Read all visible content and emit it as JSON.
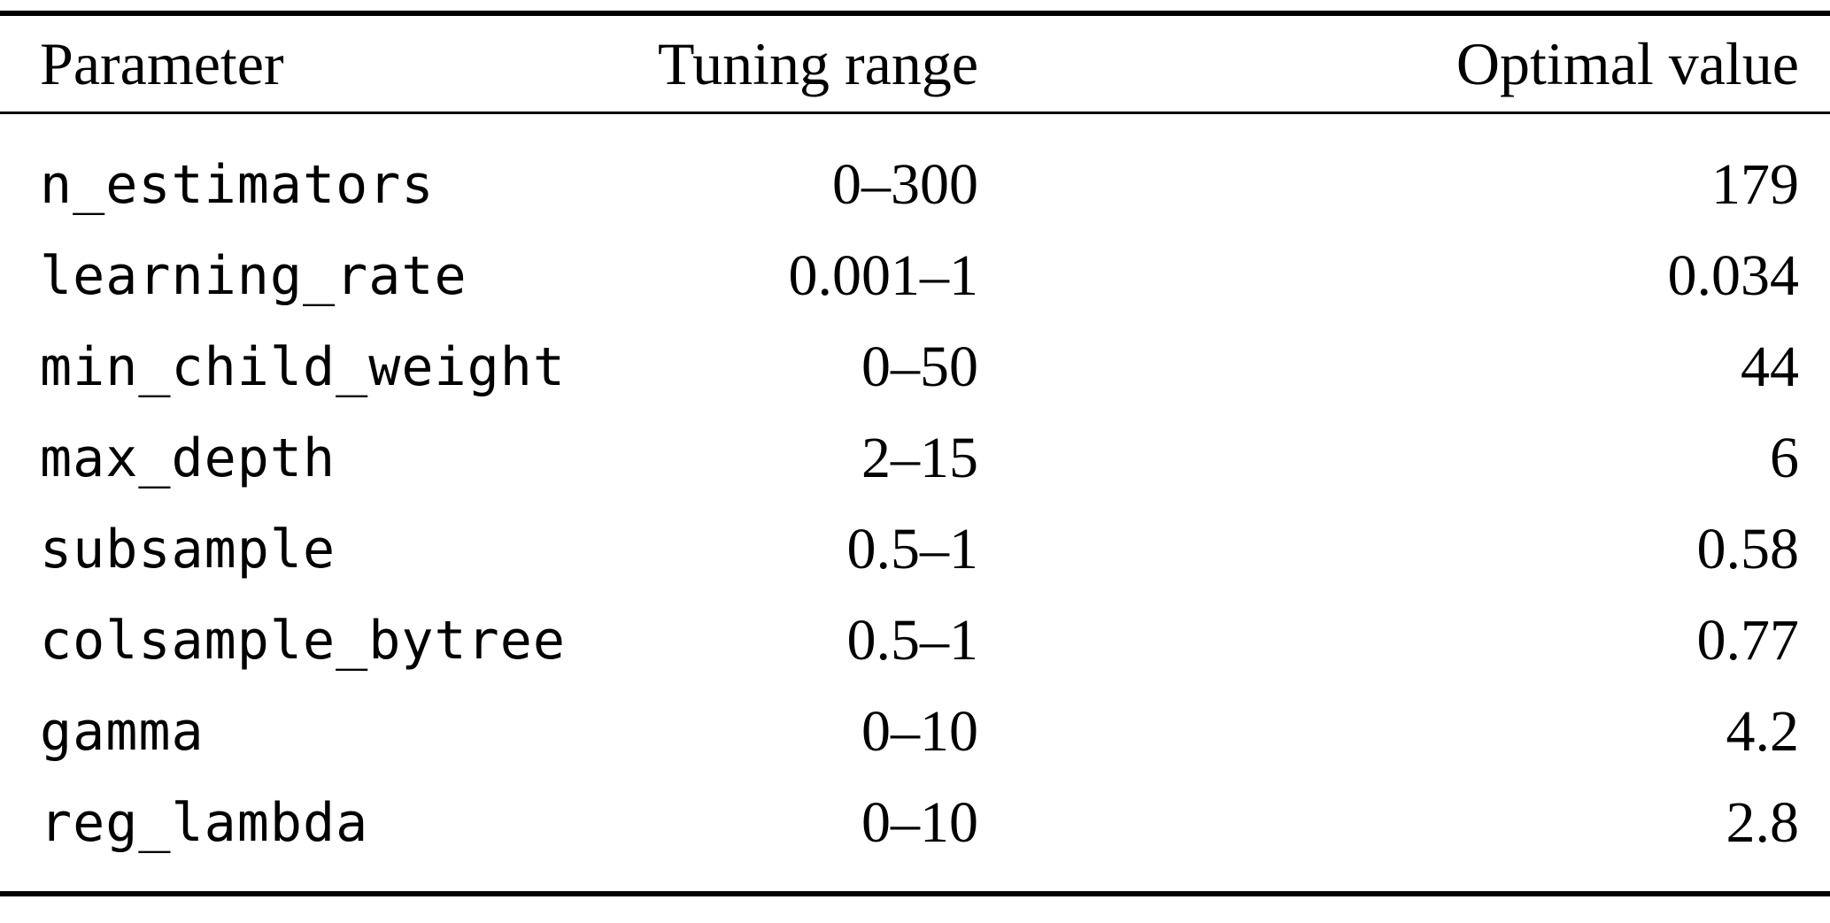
{
  "table": {
    "headers": [
      "Parameter",
      "Tuning range",
      "Optimal value"
    ],
    "rows": [
      {
        "parameter": "n_estimators",
        "range": "0–300",
        "optimal": "179"
      },
      {
        "parameter": "learning_rate",
        "range": "0.001–1",
        "optimal": "0.034"
      },
      {
        "parameter": "min_child_weight",
        "range": "0–50",
        "optimal": "44"
      },
      {
        "parameter": "max_depth",
        "range": "2–15",
        "optimal": "6"
      },
      {
        "parameter": "subsample",
        "range": "0.5–1",
        "optimal": "0.58"
      },
      {
        "parameter": "colsample_bytree",
        "range": "0.5–1",
        "optimal": "0.77"
      },
      {
        "parameter": "gamma",
        "range": "0–10",
        "optimal": "4.2"
      },
      {
        "parameter": "reg_lambda",
        "range": "0–10",
        "optimal": "2.8"
      }
    ]
  }
}
